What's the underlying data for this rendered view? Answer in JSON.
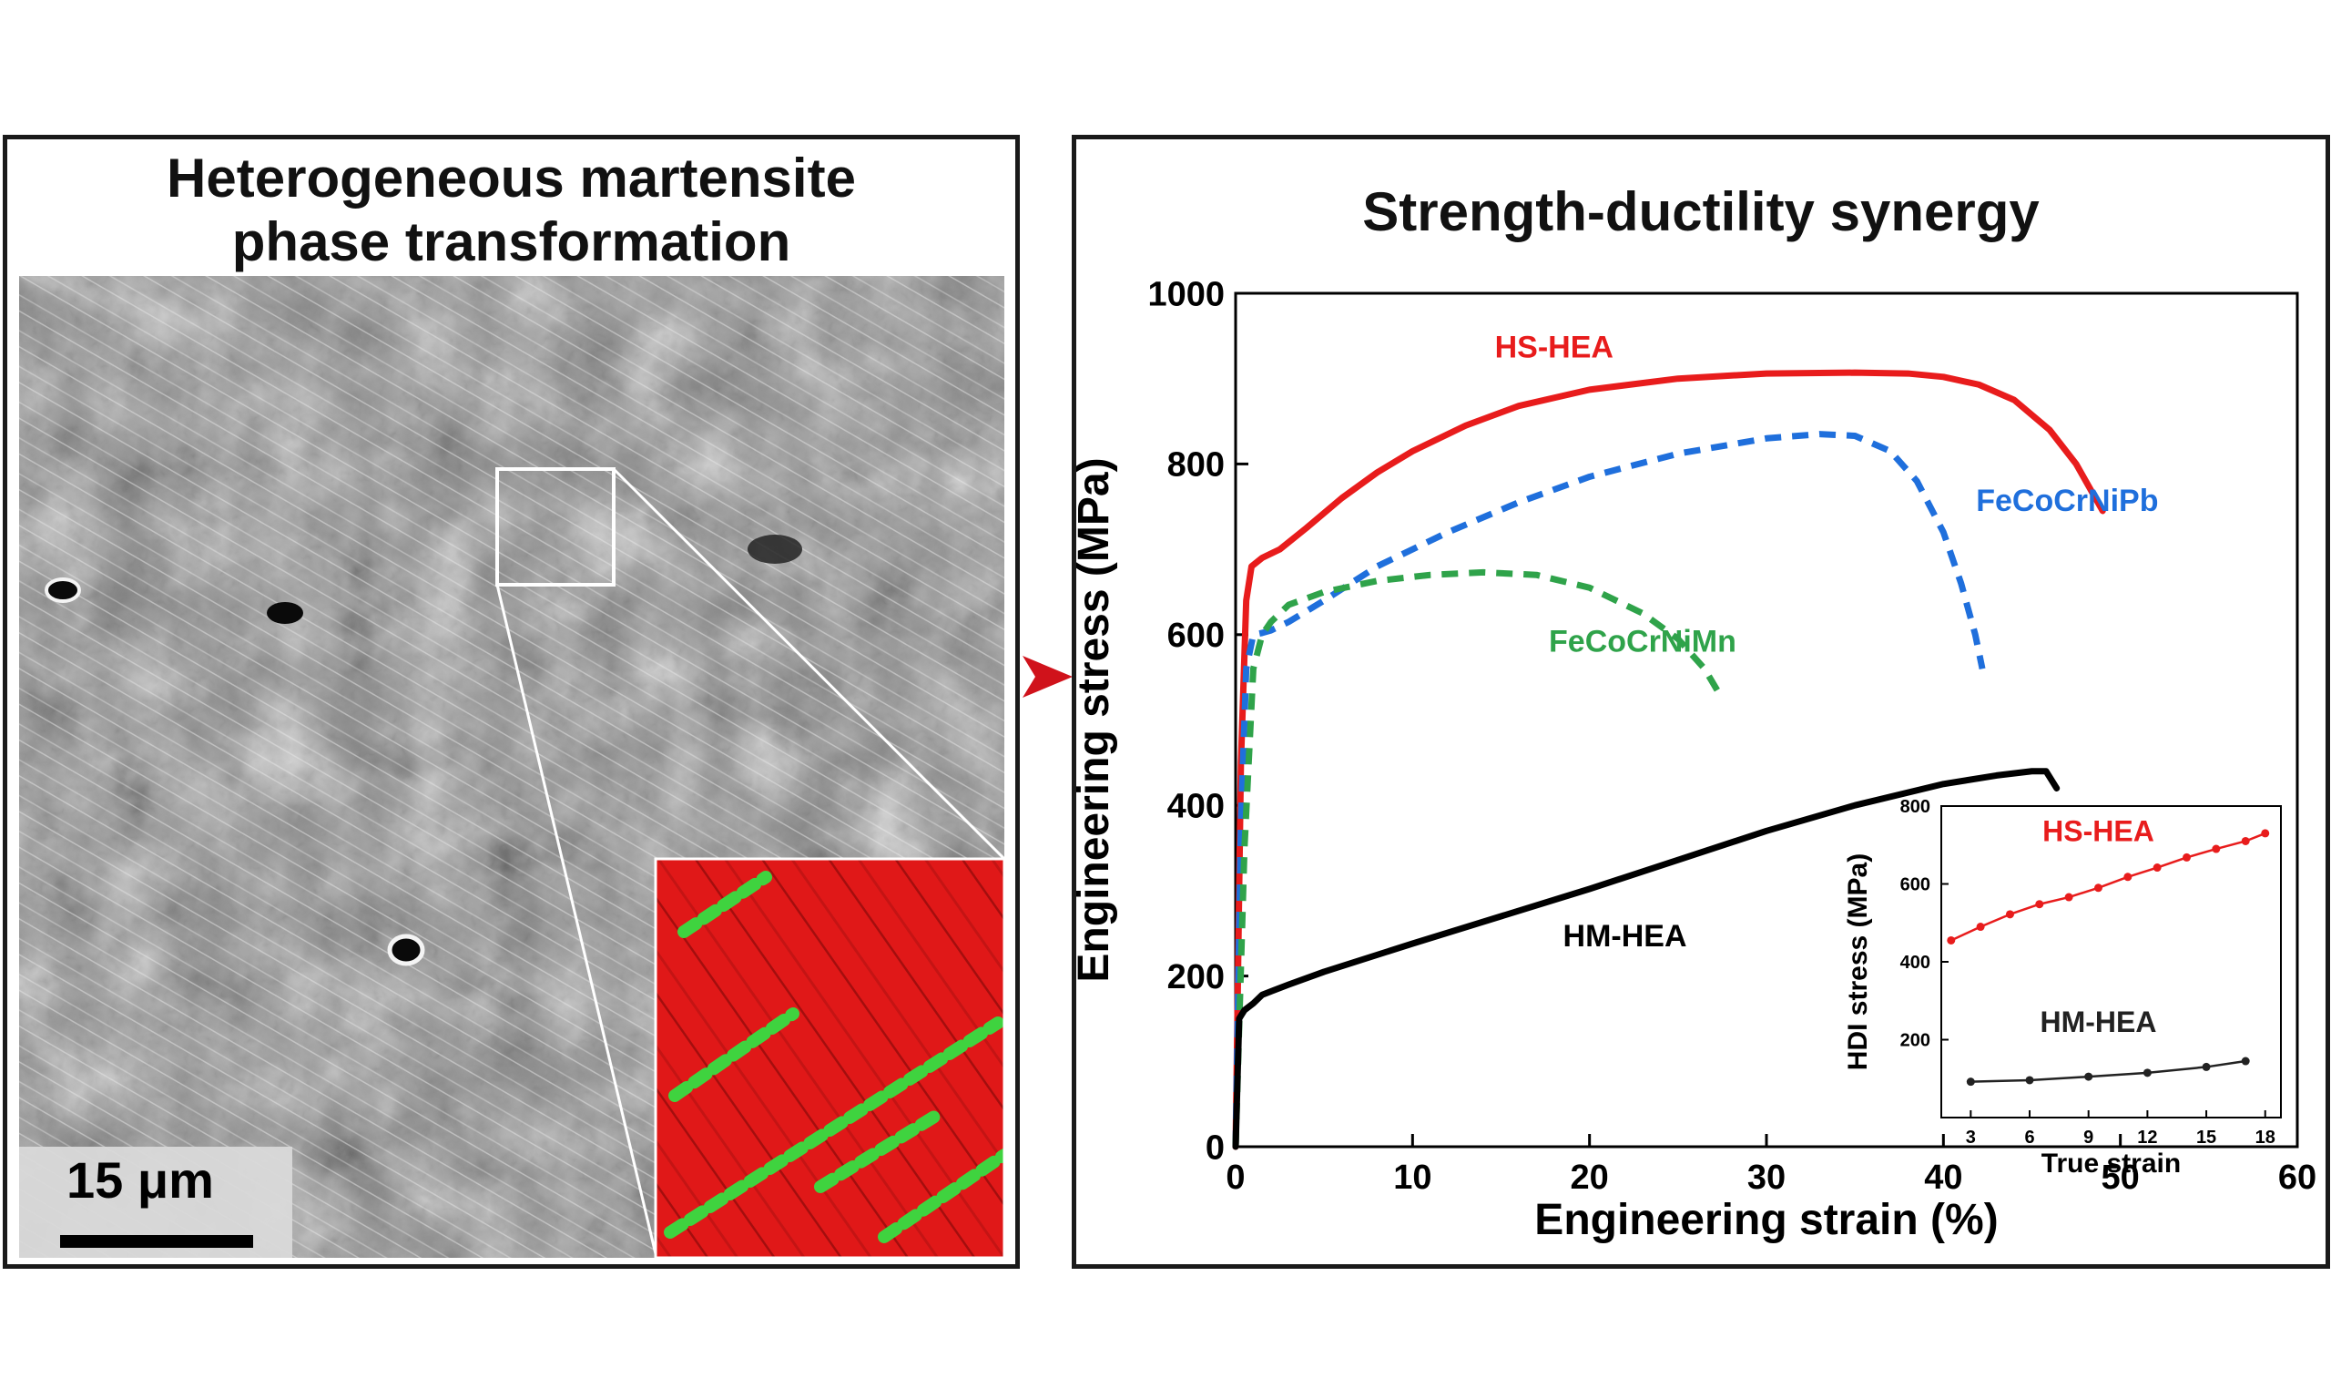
{
  "left_panel": {
    "title_line1": "Heterogeneous martensite",
    "title_line2": "phase transformation",
    "scale_bar_label": "15 μm"
  },
  "right_panel": {
    "title": "Strength-ductility synergy"
  },
  "chart_data": [
    {
      "type": "line",
      "xlabel": "Engineering strain (%)",
      "ylabel": "Engineering stress (MPa)",
      "xlim": [
        0,
        60
      ],
      "ylim": [
        0,
        1000
      ],
      "xticks": [
        0,
        10,
        20,
        30,
        40,
        50,
        60
      ],
      "yticks": [
        0,
        200,
        400,
        600,
        800,
        1000
      ],
      "legend": "inline labels",
      "series": [
        {
          "name": "HS-HEA",
          "color": "#e81c1c",
          "style": "solid",
          "label_pos": [
            18,
            925
          ],
          "x": [
            0,
            0.3,
            0.6,
            0.9,
            1.5,
            2.5,
            4,
            6,
            8,
            10,
            13,
            16,
            20,
            25,
            30,
            35,
            38,
            40,
            42,
            44,
            46,
            47.5,
            49
          ],
          "y": [
            0,
            450,
            640,
            680,
            690,
            700,
            725,
            760,
            790,
            815,
            845,
            868,
            887,
            900,
            906,
            907,
            906,
            902,
            893,
            875,
            840,
            800,
            745
          ]
        },
        {
          "name": "FeCoCrNiPb",
          "color": "#1f6fdc",
          "style": "dashed",
          "label_pos": [
            47,
            745
          ],
          "x": [
            0,
            0.3,
            0.6,
            1,
            1.5,
            2,
            3,
            5,
            8,
            12,
            16,
            20,
            25,
            30,
            33,
            35,
            37,
            38.5,
            40,
            41,
            41.8,
            42.2
          ],
          "y": [
            0,
            380,
            560,
            600,
            602,
            605,
            615,
            640,
            680,
            720,
            755,
            785,
            812,
            830,
            835,
            833,
            815,
            780,
            720,
            660,
            600,
            560
          ]
        },
        {
          "name": "FeCoCrNiMn",
          "color": "#2fa34a",
          "style": "dashed",
          "label_pos": [
            23,
            580
          ],
          "x": [
            0,
            0.5,
            1,
            1.5,
            2,
            3,
            5,
            8,
            11,
            14,
            17,
            20,
            23,
            25,
            26.5,
            27.5
          ],
          "y": [
            0,
            350,
            560,
            600,
            615,
            635,
            650,
            663,
            670,
            673,
            670,
            655,
            625,
            595,
            560,
            525
          ]
        },
        {
          "name": "HM-HEA",
          "color": "#000000",
          "style": "solid",
          "label_pos": [
            22,
            235
          ],
          "x": [
            0,
            0.2,
            0.5,
            1,
            1.5,
            3,
            5,
            10,
            15,
            20,
            25,
            30,
            35,
            40,
            43,
            45,
            45.8,
            46.4
          ],
          "y": [
            0,
            150,
            160,
            168,
            178,
            190,
            205,
            238,
            270,
            302,
            336,
            370,
            400,
            425,
            435,
            440,
            440,
            420
          ]
        }
      ]
    },
    {
      "type": "line",
      "xlabel": "True strain",
      "ylabel": "HDI stress (MPa)",
      "xlim": [
        1.5,
        18.8
      ],
      "ylim": [
        0,
        800
      ],
      "xticks": [
        3,
        6,
        9,
        12,
        15,
        18
      ],
      "yticks": [
        200,
        400,
        600,
        800
      ],
      "series": [
        {
          "name": "HS-HEA",
          "color": "#e81c1c",
          "label_pos": [
            9.5,
            710
          ],
          "x": [
            2,
            3.5,
            5,
            6.5,
            8,
            9.5,
            11,
            12.5,
            14,
            15.5,
            17,
            18
          ],
          "y": [
            455,
            490,
            522,
            548,
            566,
            590,
            618,
            642,
            668,
            690,
            710,
            730
          ]
        },
        {
          "name": "HM-HEA",
          "color": "#222222",
          "label_pos": [
            9.5,
            220
          ],
          "x": [
            3,
            6,
            9,
            12,
            15,
            17
          ],
          "y": [
            92,
            96,
            105,
            115,
            130,
            145
          ]
        }
      ]
    }
  ]
}
